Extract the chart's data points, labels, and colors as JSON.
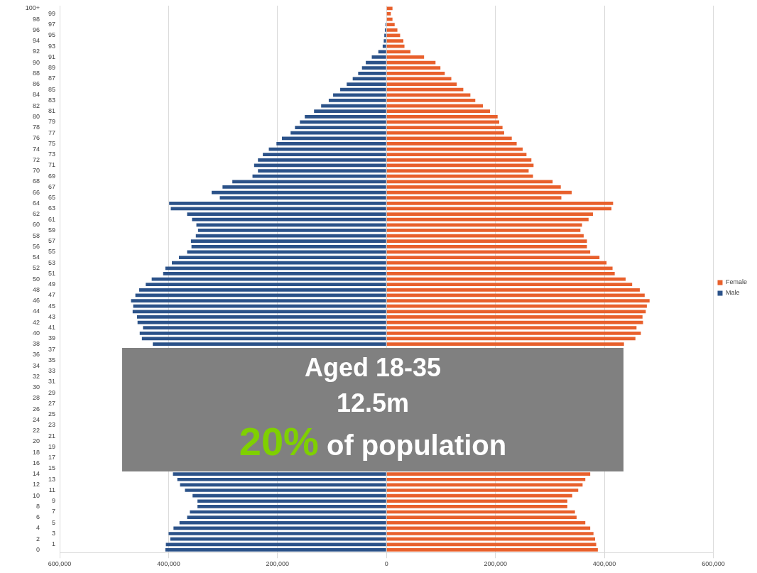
{
  "chart_data": {
    "type": "bar",
    "orientation": "horizontal",
    "stacked": true,
    "categories": [
      "100+",
      "99",
      "98",
      "97",
      "96",
      "95",
      "94",
      "93",
      "92",
      "91",
      "90",
      "89",
      "88",
      "87",
      "86",
      "85",
      "84",
      "83",
      "82",
      "81",
      "80",
      "79",
      "78",
      "77",
      "76",
      "75",
      "74",
      "73",
      "72",
      "71",
      "70",
      "69",
      "68",
      "67",
      "66",
      "65",
      "64",
      "63",
      "62",
      "61",
      "60",
      "59",
      "58",
      "57",
      "56",
      "55",
      "54",
      "53",
      "52",
      "51",
      "50",
      "49",
      "48",
      "47",
      "46",
      "45",
      "44",
      "43",
      "42",
      "41",
      "40",
      "39",
      "38",
      "37",
      "36",
      "35",
      "34",
      "33",
      "32",
      "31",
      "30",
      "29",
      "28",
      "27",
      "26",
      "25",
      "24",
      "23",
      "22",
      "21",
      "20",
      "19",
      "18",
      "17",
      "16",
      "15",
      "14",
      "13",
      "12",
      "11",
      "10",
      "9",
      "8",
      "7",
      "6",
      "5",
      "4",
      "3",
      "2",
      "1",
      "0"
    ],
    "series": [
      {
        "name": "Female",
        "color": "#e8602c",
        "values": [
          11000,
          8000,
          11000,
          15000,
          20000,
          25000,
          31000,
          33000,
          44000,
          69000,
          90000,
          99000,
          107000,
          119000,
          129000,
          141000,
          154000,
          163000,
          177000,
          190000,
          204000,
          207000,
          213000,
          216000,
          230000,
          239000,
          250000,
          257000,
          266000,
          270000,
          261000,
          269000,
          305000,
          320000,
          340000,
          321000,
          416000,
          413000,
          379000,
          371000,
          359000,
          356000,
          362000,
          368000,
          368000,
          374000,
          391000,
          404000,
          415000,
          419000,
          439000,
          451000,
          465000,
          474000,
          483000,
          478000,
          476000,
          470000,
          471000,
          459000,
          467000,
          457000,
          436000,
          null,
          null,
          null,
          null,
          null,
          null,
          null,
          null,
          null,
          null,
          null,
          null,
          null,
          null,
          null,
          null,
          null,
          null,
          null,
          null,
          null,
          null,
          null,
          374000,
          365000,
          360000,
          352000,
          341000,
          332000,
          332000,
          346000,
          349000,
          365000,
          374000,
          380000,
          383000,
          385000,
          388000
        ]
      },
      {
        "name": "Male",
        "color": "#2b5289",
        "values": [
          null,
          null,
          null,
          -2000,
          -3000,
          -4000,
          -5000,
          -7000,
          -15000,
          -27000,
          -38000,
          -45000,
          -52000,
          -62000,
          -73000,
          -85000,
          -98000,
          -106000,
          -120000,
          -133000,
          -150000,
          -159000,
          -168000,
          -176000,
          -192000,
          -202000,
          -216000,
          -227000,
          -236000,
          -243000,
          -236000,
          -246000,
          -283000,
          -301000,
          -321000,
          -306000,
          -399000,
          -396000,
          -366000,
          -357000,
          -349000,
          -346000,
          -350000,
          -359000,
          -358000,
          -366000,
          -381000,
          -394000,
          -406000,
          -410000,
          -431000,
          -442000,
          -454000,
          -461000,
          -469000,
          -465000,
          -466000,
          -458000,
          -457000,
          -447000,
          -453000,
          -449000,
          -429000,
          null,
          null,
          null,
          null,
          null,
          null,
          null,
          null,
          null,
          null,
          null,
          null,
          null,
          null,
          null,
          null,
          null,
          null,
          null,
          null,
          null,
          null,
          null,
          -392000,
          -384000,
          -379000,
          -370000,
          -356000,
          -347000,
          -347000,
          -361000,
          -366000,
          -380000,
          -391000,
          -400000,
          -397000,
          -405000,
          -406000
        ]
      }
    ],
    "xlim": [
      -600000,
      600000
    ],
    "xticks": [
      {
        "value": -600000,
        "label": "600,000"
      },
      {
        "value": -400000,
        "label": "400,000"
      },
      {
        "value": -200000,
        "label": "200,000"
      },
      0,
      {
        "value": 200000,
        "label": "200,000"
      },
      {
        "value": 400000,
        "label": "400,000"
      },
      {
        "value": 600000,
        "label": "600,000"
      }
    ],
    "grid": "x",
    "legend": "right",
    "annotations": [
      "Aged 18-35",
      "12.5m",
      "20%",
      "of population"
    ]
  }
}
